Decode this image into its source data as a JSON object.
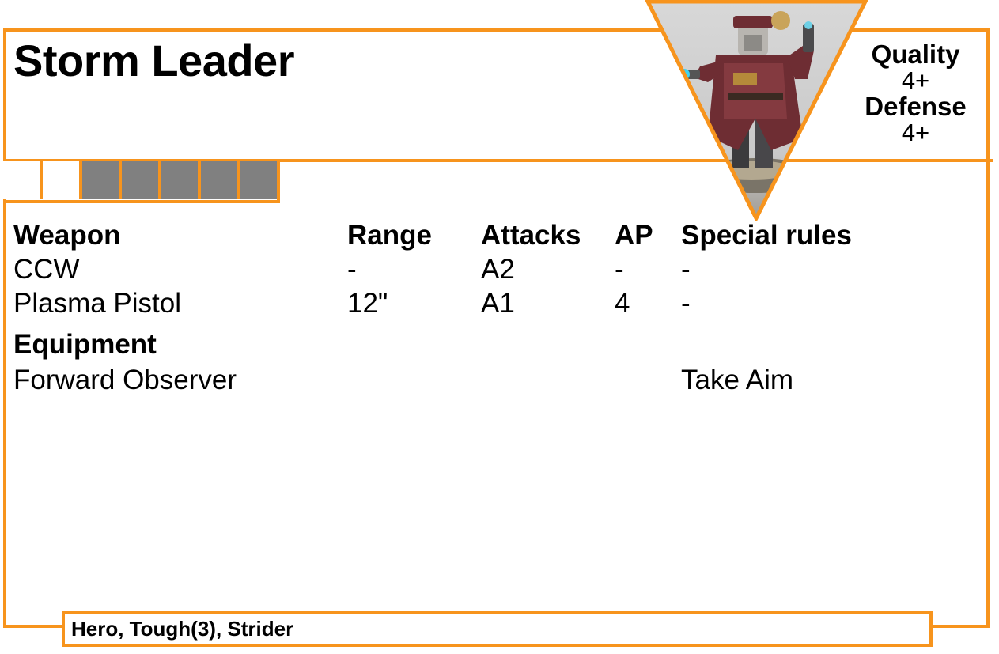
{
  "unit": {
    "name": "Storm Leader",
    "quality_label": "Quality",
    "quality_value": "4+",
    "defense_label": "Defense",
    "defense_value": "4+"
  },
  "wound_track": {
    "total_boxes": 7,
    "open_boxes": 2
  },
  "portrait": {
    "icon": "miniature-figure-image"
  },
  "weapons": {
    "headers": [
      "Weapon",
      "Range",
      "Attacks",
      "AP",
      "Special rules"
    ],
    "rows": [
      [
        "CCW",
        "-",
        "A2",
        "-",
        "-"
      ],
      [
        "Plasma Pistol",
        "12\"",
        "A1",
        "4",
        "-"
      ]
    ]
  },
  "equipment": {
    "title": "Equipment",
    "items": [
      {
        "name": "Forward Observer",
        "rule": "Take Aim"
      }
    ]
  },
  "keywords": "Hero, Tough(3), Strider",
  "colors": {
    "accent": "#F7941D",
    "filled_box": "#808080"
  }
}
